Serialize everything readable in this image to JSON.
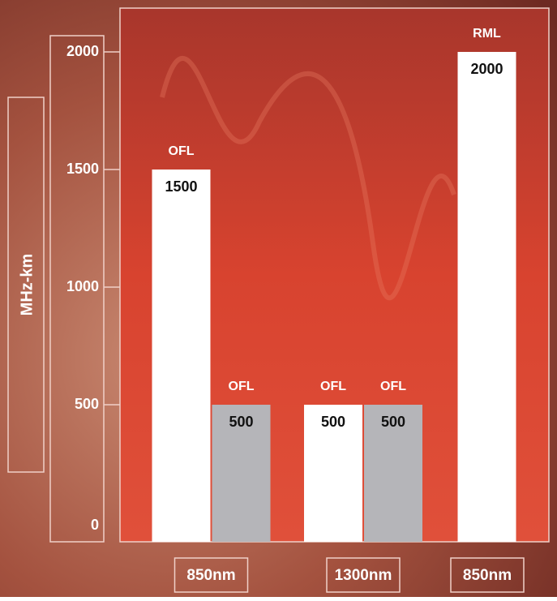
{
  "chart_data": {
    "type": "bar",
    "y_label": "MHz-km",
    "categories": [
      "850nm",
      "1300nm",
      "850nm"
    ],
    "series": [
      {
        "color": "#ffffff",
        "values": [
          1500,
          500,
          2000
        ],
        "labels": [
          "OFL",
          "OFL",
          "RML"
        ]
      },
      {
        "color": "#b5b5b9",
        "values": [
          500,
          500,
          null
        ],
        "labels": [
          "OFL",
          "OFL",
          null
        ]
      }
    ],
    "ylim": [
      0,
      2000
    ],
    "yticks": [
      0,
      500,
      1000,
      1500,
      2000
    ]
  }
}
